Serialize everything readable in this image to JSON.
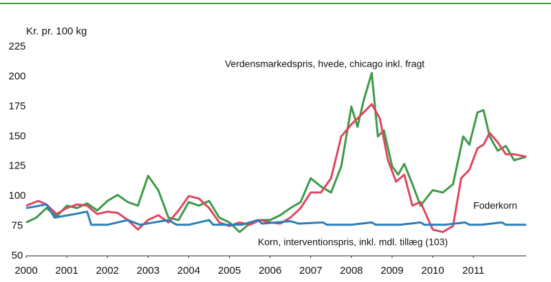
{
  "chart_data": {
    "type": "line",
    "ylabel": "Kr. pr. 100 kg",
    "xlim": [
      2000,
      2012.3
    ],
    "xticks": [
      2000,
      2001,
      2002,
      2003,
      2004,
      2005,
      2006,
      2007,
      2008,
      2009,
      2010,
      2011
    ],
    "ylim": [
      50,
      225
    ],
    "yticks": [
      50,
      75,
      100,
      125,
      150,
      175,
      200,
      225
    ],
    "grid": false,
    "series": [
      {
        "name": "Verdensmarkedspris, hvede, chicago inkl. fragt",
        "color": "#3d9a48",
        "x": [
          2000,
          2000.25,
          2000.5,
          2000.75,
          2001,
          2001.25,
          2001.5,
          2001.75,
          2002,
          2002.25,
          2002.5,
          2002.75,
          2003,
          2003.25,
          2003.5,
          2003.75,
          2004,
          2004.25,
          2004.5,
          2004.75,
          2005,
          2005.25,
          2005.5,
          2005.75,
          2006,
          2006.25,
          2006.5,
          2006.75,
          2007,
          2007.25,
          2007.5,
          2007.75,
          2008,
          2008.15,
          2008.3,
          2008.5,
          2008.65,
          2008.8,
          2009,
          2009.15,
          2009.3,
          2009.5,
          2009.7,
          2010,
          2010.25,
          2010.5,
          2010.75,
          2010.9,
          2011.1,
          2011.25,
          2011.4,
          2011.6,
          2011.8,
          2012,
          2012.3
        ],
        "values": [
          78,
          82,
          90,
          83,
          92,
          90,
          94,
          88,
          96,
          101,
          95,
          92,
          117,
          105,
          82,
          80,
          95,
          92,
          96,
          82,
          78,
          70,
          77,
          80,
          80,
          84,
          90,
          95,
          115,
          108,
          103,
          125,
          175,
          158,
          180,
          203,
          150,
          155,
          125,
          118,
          127,
          110,
          92,
          105,
          103,
          110,
          150,
          143,
          170,
          172,
          150,
          138,
          142,
          130,
          133
        ]
      },
      {
        "name": "Foderkorn",
        "color": "#e0455f",
        "x": [
          2000,
          2000.3,
          2000.5,
          2000.75,
          2001,
          2001.25,
          2001.5,
          2001.75,
          2002,
          2002.25,
          2002.5,
          2002.75,
          2003,
          2003.25,
          2003.5,
          2003.75,
          2004,
          2004.25,
          2004.5,
          2004.75,
          2005,
          2005.25,
          2005.5,
          2005.75,
          2006,
          2006.25,
          2006.5,
          2006.75,
          2007,
          2007.25,
          2007.5,
          2007.75,
          2008,
          2008.3,
          2008.5,
          2008.7,
          2008.9,
          2009.1,
          2009.3,
          2009.5,
          2009.7,
          2010,
          2010.25,
          2010.5,
          2010.7,
          2010.9,
          2011.1,
          2011.25,
          2011.4,
          2011.6,
          2011.8,
          2012,
          2012.3
        ],
        "values": [
          92,
          96,
          93,
          85,
          90,
          93,
          92,
          85,
          87,
          86,
          80,
          72,
          80,
          84,
          78,
          88,
          100,
          98,
          90,
          78,
          75,
          78,
          76,
          80,
          78,
          77,
          82,
          90,
          103,
          103,
          115,
          150,
          160,
          170,
          177,
          165,
          130,
          112,
          118,
          92,
          95,
          72,
          70,
          75,
          115,
          122,
          140,
          143,
          153,
          145,
          135,
          135,
          133
        ]
      },
      {
        "name": "Korn, interventionspris, inkl. mdl. tillæg (103)",
        "color": "#2b7fb8",
        "x": [
          2000,
          2000.5,
          2000.7,
          2001.2,
          2001.5,
          2001.6,
          2002,
          2002.5,
          2002.8,
          2003.5,
          2003.7,
          2004,
          2004.5,
          2004.6,
          2005.3,
          2005.7,
          2005.8,
          2006.5,
          2006.7,
          2007.3,
          2007.4,
          2008,
          2008.5,
          2008.6,
          2009.2,
          2009.7,
          2009.8,
          2010.3,
          2010.8,
          2010.9,
          2011.2,
          2011.7,
          2011.8,
          2012.3
        ],
        "values": [
          90,
          93,
          82,
          85,
          87,
          76,
          76,
          80,
          76,
          80,
          76,
          76,
          80,
          76,
          76,
          80,
          77,
          79,
          77,
          78,
          76,
          76,
          78,
          76,
          76,
          78,
          76,
          76,
          78,
          76,
          76,
          78,
          76,
          76
        ]
      }
    ]
  }
}
